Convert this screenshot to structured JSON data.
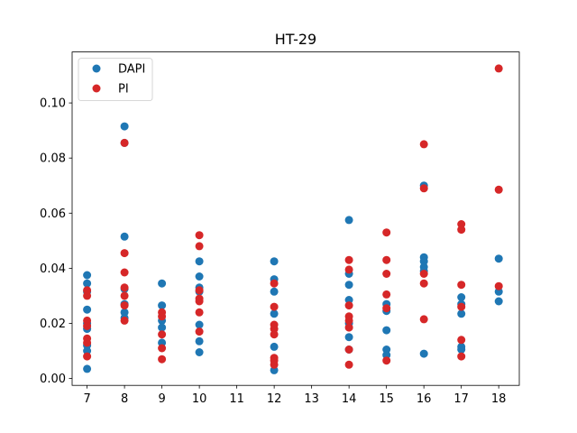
{
  "chart_data": {
    "type": "scatter",
    "title": "HT-29",
    "xlabel": "",
    "ylabel": "",
    "xlim": [
      6.6,
      18.55
    ],
    "ylim": [
      -0.0025,
      0.1185
    ],
    "xticks": [
      7,
      8,
      9,
      10,
      11,
      12,
      13,
      14,
      15,
      16,
      17,
      18
    ],
    "yticks": [
      0.0,
      0.02,
      0.04,
      0.06,
      0.08,
      0.1
    ],
    "ytick_labels": [
      "0.00",
      "0.02",
      "0.04",
      "0.06",
      "0.08",
      "0.10"
    ],
    "grid": false,
    "legend_position": "top-left",
    "series": [
      {
        "name": "DAPI",
        "color": "#1f77b4",
        "points": [
          [
            7,
            0.0375
          ],
          [
            7,
            0.0345
          ],
          [
            7,
            0.0315
          ],
          [
            7,
            0.025
          ],
          [
            7,
            0.02
          ],
          [
            7,
            0.018
          ],
          [
            7,
            0.012
          ],
          [
            7,
            0.01
          ],
          [
            7,
            0.0035
          ],
          [
            8,
            0.0915
          ],
          [
            8,
            0.0855
          ],
          [
            8,
            0.0515
          ],
          [
            8,
            0.0325
          ],
          [
            8,
            0.027
          ],
          [
            8,
            0.024
          ],
          [
            8,
            0.022
          ],
          [
            9,
            0.0345
          ],
          [
            9,
            0.0265
          ],
          [
            9,
            0.021
          ],
          [
            9,
            0.0185
          ],
          [
            9,
            0.013
          ],
          [
            10,
            0.0425
          ],
          [
            10,
            0.037
          ],
          [
            10,
            0.033
          ],
          [
            10,
            0.0315
          ],
          [
            10,
            0.0195
          ],
          [
            10,
            0.0135
          ],
          [
            10,
            0.0095
          ],
          [
            12,
            0.0425
          ],
          [
            12,
            0.036
          ],
          [
            12,
            0.0315
          ],
          [
            12,
            0.0235
          ],
          [
            12,
            0.0115
          ],
          [
            12,
            0.003
          ],
          [
            14,
            0.0575
          ],
          [
            14,
            0.038
          ],
          [
            14,
            0.034
          ],
          [
            14,
            0.0285
          ],
          [
            14,
            0.02
          ],
          [
            14,
            0.015
          ],
          [
            14,
            0.0105
          ],
          [
            15,
            0.027
          ],
          [
            15,
            0.0245
          ],
          [
            15,
            0.0175
          ],
          [
            15,
            0.0105
          ],
          [
            15,
            0.0085
          ],
          [
            16,
            0.07
          ],
          [
            16,
            0.044
          ],
          [
            16,
            0.0425
          ],
          [
            16,
            0.0405
          ],
          [
            16,
            0.039
          ],
          [
            16,
            0.009
          ],
          [
            17,
            0.0295
          ],
          [
            17,
            0.027
          ],
          [
            17,
            0.0235
          ],
          [
            17,
            0.0115
          ],
          [
            17,
            0.0105
          ],
          [
            18,
            0.0435
          ],
          [
            18,
            0.0315
          ],
          [
            18,
            0.028
          ]
        ]
      },
      {
        "name": "PI",
        "color": "#d62728",
        "points": [
          [
            7,
            0.032
          ],
          [
            7,
            0.03
          ],
          [
            7,
            0.021
          ],
          [
            7,
            0.019
          ],
          [
            7,
            0.0145
          ],
          [
            7,
            0.013
          ],
          [
            7,
            0.008
          ],
          [
            8,
            0.0855
          ],
          [
            8,
            0.0455
          ],
          [
            8,
            0.0385
          ],
          [
            8,
            0.033
          ],
          [
            8,
            0.03
          ],
          [
            8,
            0.0265
          ],
          [
            8,
            0.021
          ],
          [
            9,
            0.024
          ],
          [
            9,
            0.0225
          ],
          [
            9,
            0.016
          ],
          [
            9,
            0.011
          ],
          [
            9,
            0.007
          ],
          [
            10,
            0.052
          ],
          [
            10,
            0.048
          ],
          [
            10,
            0.032
          ],
          [
            10,
            0.029
          ],
          [
            10,
            0.028
          ],
          [
            10,
            0.024
          ],
          [
            10,
            0.017
          ],
          [
            12,
            0.0345
          ],
          [
            12,
            0.026
          ],
          [
            12,
            0.0195
          ],
          [
            12,
            0.018
          ],
          [
            12,
            0.016
          ],
          [
            12,
            0.0075
          ],
          [
            12,
            0.0065
          ],
          [
            12,
            0.005
          ],
          [
            14,
            0.043
          ],
          [
            14,
            0.0395
          ],
          [
            14,
            0.0265
          ],
          [
            14,
            0.0225
          ],
          [
            14,
            0.021
          ],
          [
            14,
            0.0185
          ],
          [
            14,
            0.0105
          ],
          [
            14,
            0.005
          ],
          [
            15,
            0.053
          ],
          [
            15,
            0.043
          ],
          [
            15,
            0.038
          ],
          [
            15,
            0.0305
          ],
          [
            15,
            0.0255
          ],
          [
            15,
            0.0065
          ],
          [
            16,
            0.085
          ],
          [
            16,
            0.069
          ],
          [
            16,
            0.038
          ],
          [
            16,
            0.0345
          ],
          [
            16,
            0.0215
          ],
          [
            17,
            0.056
          ],
          [
            17,
            0.054
          ],
          [
            17,
            0.034
          ],
          [
            17,
            0.026
          ],
          [
            17,
            0.014
          ],
          [
            17,
            0.008
          ],
          [
            18,
            0.1125
          ],
          [
            18,
            0.0685
          ],
          [
            18,
            0.0335
          ]
        ]
      }
    ]
  }
}
